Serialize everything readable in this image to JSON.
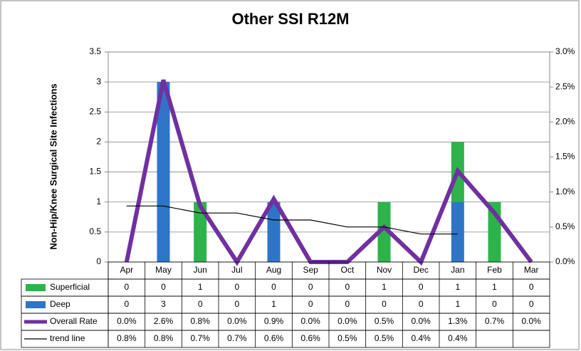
{
  "chart_data": {
    "type": "bar",
    "title": "Other SSI R12M",
    "y_label": "Non-Hip/Knee Surgical Site Infections",
    "categories": [
      "Apr",
      "May",
      "Jun",
      "Jul",
      "Aug",
      "Sep",
      "Oct",
      "Nov",
      "Dec",
      "Jan",
      "Feb",
      "Mar"
    ],
    "series": [
      {
        "name": "Superficial",
        "type": "bar",
        "color": "#2db34a",
        "values": [
          0,
          0,
          1,
          0,
          0,
          0,
          0,
          1,
          0,
          1,
          1,
          0
        ]
      },
      {
        "name": "Deep",
        "type": "bar",
        "color": "#2e75c8",
        "values": [
          0,
          3,
          0,
          0,
          1,
          0,
          0,
          0,
          0,
          1,
          0,
          0
        ]
      },
      {
        "name": "Overall Rate",
        "type": "line",
        "axis": "y2",
        "color": "#7030a0",
        "values": [
          0.0,
          2.6,
          0.8,
          0.0,
          0.9,
          0.0,
          0.0,
          0.5,
          0.0,
          1.3,
          0.7,
          0.0
        ],
        "value_labels": [
          "0.0%",
          "2.6%",
          "0.8%",
          "0.0%",
          "0.9%",
          "0.0%",
          "0.0%",
          "0.5%",
          "0.0%",
          "1.3%",
          "0.7%",
          "0.0%"
        ]
      },
      {
        "name": "trend line",
        "type": "line",
        "axis": "y2",
        "color": "#000000",
        "values": [
          0.8,
          0.8,
          0.7,
          0.7,
          0.6,
          0.6,
          0.5,
          0.5,
          0.4,
          0.4,
          null,
          null
        ],
        "value_labels": [
          "0.8%",
          "0.8%",
          "0.7%",
          "0.7%",
          "0.6%",
          "0.6%",
          "0.5%",
          "0.5%",
          "0.4%",
          "0.4%",
          null,
          null
        ]
      }
    ],
    "ylim": [
      0,
      3.5
    ],
    "yticks": [
      0,
      0.5,
      1,
      1.5,
      2,
      2.5,
      3,
      3.5
    ],
    "y2lim": [
      0,
      3.0
    ],
    "y2ticks": [
      {
        "value": 0,
        "label": "0.0%"
      },
      {
        "value": 0.5,
        "label": "0.5%"
      },
      {
        "value": 1.0,
        "label": "1.0%"
      },
      {
        "value": 1.5,
        "label": "1.5%"
      },
      {
        "value": 2.0,
        "label": "2.0%"
      },
      {
        "value": 2.5,
        "label": "2.5%"
      },
      {
        "value": 3.0,
        "label": "3.0%"
      }
    ],
    "grid": true
  }
}
